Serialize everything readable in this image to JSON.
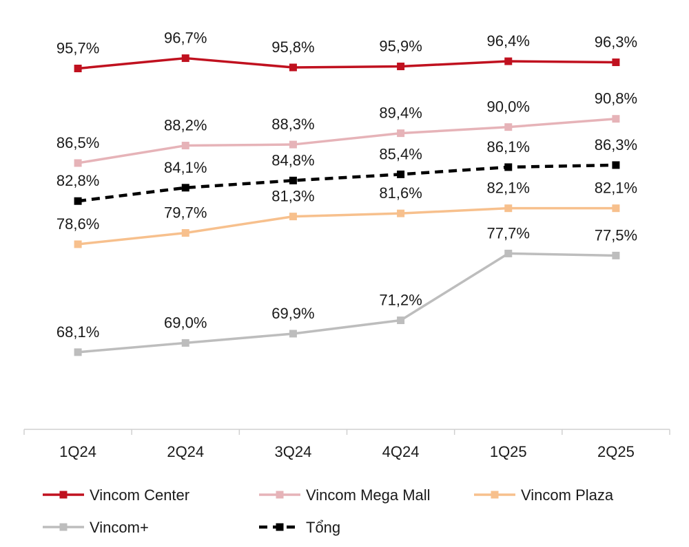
{
  "chart_data": {
    "type": "line",
    "title": "",
    "xlabel": "",
    "ylabel": "",
    "grid": false,
    "legend_position": "bottom",
    "ylim": [
      55,
      100
    ],
    "categories": [
      "1Q24",
      "2Q24",
      "3Q24",
      "4Q24",
      "1Q25",
      "2Q25"
    ],
    "series": [
      {
        "name": "Vincom Center",
        "color": "#C0111F",
        "dashed": false,
        "values": [
          95.7,
          96.7,
          95.8,
          95.9,
          96.4,
          96.3
        ],
        "labels": [
          "95,7%",
          "96,7%",
          "95,8%",
          "95,9%",
          "96,4%",
          "96,3%"
        ]
      },
      {
        "name": "Vincom Mega Mall",
        "color": "#E6B3B8",
        "dashed": false,
        "values": [
          86.5,
          88.2,
          88.3,
          89.4,
          90.0,
          90.8
        ],
        "labels": [
          "86,5%",
          "88,2%",
          "88,3%",
          "89,4%",
          "90,0%",
          "90,8%"
        ]
      },
      {
        "name": "Vincom Plaza",
        "color": "#F7C08D",
        "dashed": false,
        "values": [
          78.6,
          79.7,
          81.3,
          81.6,
          82.1,
          82.1
        ],
        "labels": [
          "78,6%",
          "79,7%",
          "81,3%",
          "81,6%",
          "82,1%",
          "82,1%"
        ]
      },
      {
        "name": "Vincom+",
        "color": "#BDBDBD",
        "dashed": false,
        "values": [
          68.1,
          69.0,
          69.9,
          71.2,
          77.7,
          77.5
        ],
        "labels": [
          "68,1%",
          "69,0%",
          "69,9%",
          "71,2%",
          "77,7%",
          "77,5%"
        ]
      },
      {
        "name": "Tổng",
        "color": "#000000",
        "dashed": true,
        "values": [
          82.8,
          84.1,
          84.8,
          85.4,
          86.1,
          86.3
        ],
        "labels": [
          "82,8%",
          "84,1%",
          "84,8%",
          "85,4%",
          "86,1%",
          "86,3%"
        ]
      }
    ]
  }
}
